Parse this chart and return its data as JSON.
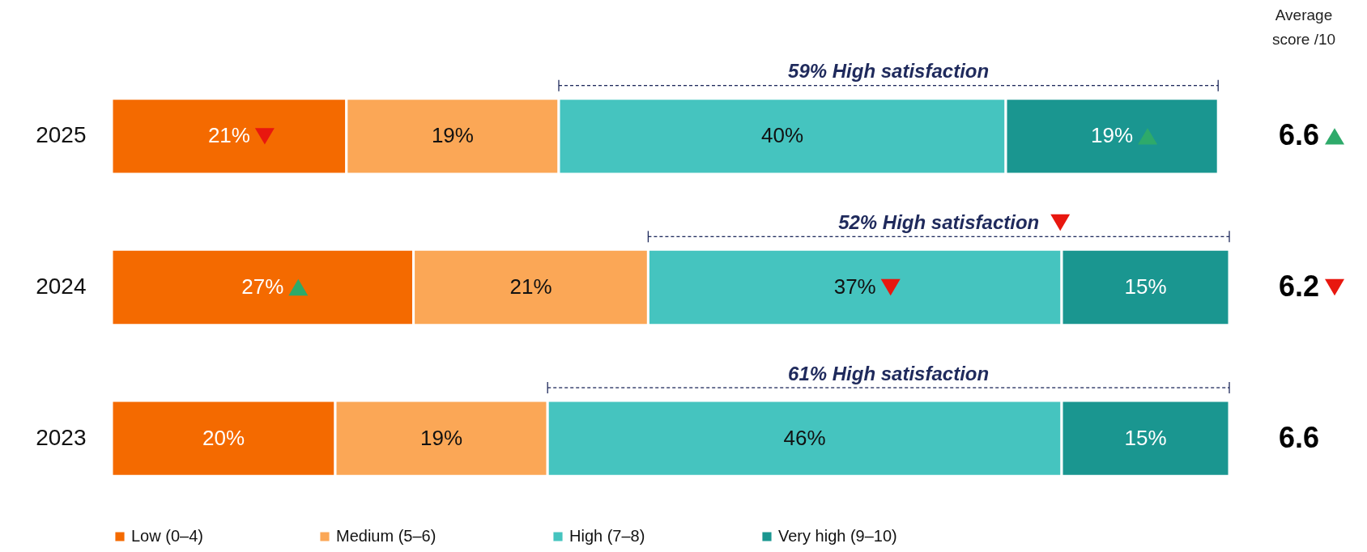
{
  "chart_data": {
    "type": "bar",
    "orientation": "horizontal",
    "stacked": true,
    "categories": [
      "2025",
      "2024",
      "2023"
    ],
    "series": [
      {
        "name": "Low (0–4)",
        "color": "#f46a00",
        "values": [
          21,
          27,
          20
        ],
        "value_labels": [
          "21%",
          "27%",
          "20%"
        ]
      },
      {
        "name": "Medium (5–6)",
        "color": "#fba756",
        "values": [
          19,
          21,
          19
        ],
        "value_labels": [
          "19%",
          "21%",
          "19%"
        ]
      },
      {
        "name": "High (7–8)",
        "color": "#45c4bf",
        "values": [
          40,
          37,
          46
        ],
        "value_labels": [
          "40%",
          "37%",
          "46%"
        ]
      },
      {
        "name": "Very high (9–10)",
        "color": "#1a9690",
        "values": [
          19,
          15,
          15
        ],
        "value_labels": [
          "19%",
          "15%",
          "15%"
        ]
      }
    ],
    "xlim": [
      0,
      100
    ],
    "tick_labels": "y",
    "legend": "bottom",
    "grid": false,
    "annotations": [
      "Average score /10",
      "59% High satisfaction",
      "52% High satisfaction",
      "61% High satisfaction",
      "6.6",
      "6.2",
      "6.6"
    ]
  }
}
